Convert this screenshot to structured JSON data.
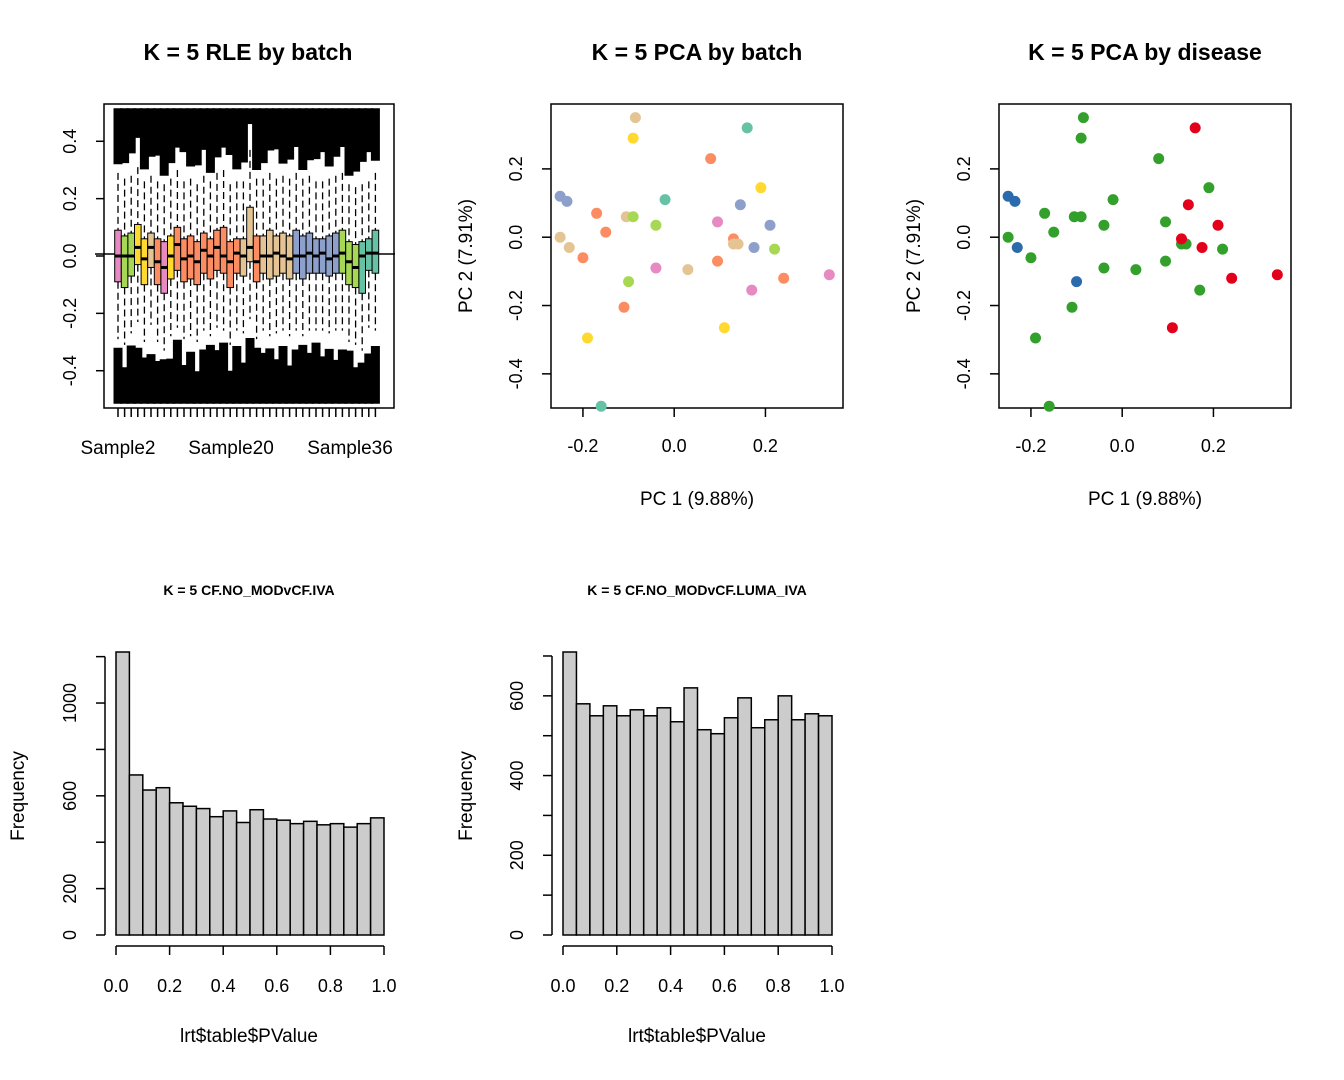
{
  "colors": {
    "background": "#ffffff",
    "hist_fill": "#cccccc",
    "outline": "#000000",
    "batch_palette": [
      "#e78ac3",
      "#a6d854",
      "#ffd92f",
      "#e5c494",
      "#fc8d62",
      "#8da0cb",
      "#66c2a5"
    ],
    "disease": {
      "blue": "#2b6bab",
      "green": "#33a02c",
      "red": "#e3001b"
    }
  },
  "chart_data": [
    {
      "type": "box",
      "title": "K = 5 RLE by batch",
      "xlabel": "",
      "ylabel": "",
      "x_tick_labels": [
        "Sample2",
        "Sample20",
        "Sample36"
      ],
      "y_ticks": [
        -0.4,
        -0.2,
        0.0,
        0.2,
        0.4
      ],
      "y_tick_labels": [
        "-0.4",
        "-0.2",
        "0.0",
        "0.2",
        "0.4"
      ],
      "ylim": [
        -0.53,
        0.53
      ],
      "reference_line": 0,
      "n_samples": 40,
      "boxes": [
        {
          "color": "#e78ac3",
          "median": 0.0,
          "q1": -0.09,
          "q3": 0.09
        },
        {
          "color": "#a6d854",
          "median": 0.0,
          "q1": -0.11,
          "q3": 0.07
        },
        {
          "color": "#a6d854",
          "median": 0.0,
          "q1": -0.07,
          "q3": 0.08
        },
        {
          "color": "#ffd92f",
          "median": 0.03,
          "q1": -0.03,
          "q3": 0.11
        },
        {
          "color": "#ffd92f",
          "median": -0.01,
          "q1": -0.1,
          "q3": 0.06
        },
        {
          "color": "#e5c494",
          "median": 0.03,
          "q1": -0.04,
          "q3": 0.08
        },
        {
          "color": "#fc8d62",
          "median": -0.02,
          "q1": -0.1,
          "q3": 0.06
        },
        {
          "color": "#e78ac3",
          "median": -0.04,
          "q1": -0.13,
          "q3": 0.05
        },
        {
          "color": "#ffd92f",
          "median": 0.0,
          "q1": -0.08,
          "q3": 0.07
        },
        {
          "color": "#fc8d62",
          "median": 0.04,
          "q1": -0.05,
          "q3": 0.1
        },
        {
          "color": "#fc8d62",
          "median": -0.01,
          "q1": -0.09,
          "q3": 0.06
        },
        {
          "color": "#fc8d62",
          "median": 0.0,
          "q1": -0.08,
          "q3": 0.07
        },
        {
          "color": "#fc8d62",
          "median": -0.02,
          "q1": -0.1,
          "q3": 0.05
        },
        {
          "color": "#fc8d62",
          "median": 0.02,
          "q1": -0.06,
          "q3": 0.08
        },
        {
          "color": "#fc8d62",
          "median": 0.0,
          "q1": -0.08,
          "q3": 0.06
        },
        {
          "color": "#fc8d62",
          "median": 0.03,
          "q1": -0.05,
          "q3": 0.09
        },
        {
          "color": "#fc8d62",
          "median": 0.0,
          "q1": -0.06,
          "q3": 0.1
        },
        {
          "color": "#fc8d62",
          "median": -0.02,
          "q1": -0.11,
          "q3": 0.05
        },
        {
          "color": "#fc8d62",
          "median": 0.01,
          "q1": -0.06,
          "q3": 0.06
        },
        {
          "color": "#e5c494",
          "median": 0.0,
          "q1": -0.07,
          "q3": 0.06
        },
        {
          "color": "#e5c494",
          "median": 0.03,
          "q1": -0.02,
          "q3": 0.17
        },
        {
          "color": "#fc8d62",
          "median": -0.02,
          "q1": -0.09,
          "q3": 0.07
        },
        {
          "color": "#e5c494",
          "median": 0.0,
          "q1": -0.06,
          "q3": 0.07
        },
        {
          "color": "#e5c494",
          "median": 0.0,
          "q1": -0.08,
          "q3": 0.09
        },
        {
          "color": "#e5c494",
          "median": 0.01,
          "q1": -0.07,
          "q3": 0.07
        },
        {
          "color": "#e5c494",
          "median": 0.0,
          "q1": -0.06,
          "q3": 0.08
        },
        {
          "color": "#e5c494",
          "median": -0.01,
          "q1": -0.08,
          "q3": 0.07
        },
        {
          "color": "#8da0cb",
          "median": 0.0,
          "q1": -0.06,
          "q3": 0.09
        },
        {
          "color": "#8da0cb",
          "median": 0.0,
          "q1": -0.08,
          "q3": 0.07
        },
        {
          "color": "#8da0cb",
          "median": 0.01,
          "q1": -0.06,
          "q3": 0.08
        },
        {
          "color": "#8da0cb",
          "median": 0.0,
          "q1": -0.06,
          "q3": 0.06
        },
        {
          "color": "#8da0cb",
          "median": 0.01,
          "q1": -0.06,
          "q3": 0.06
        },
        {
          "color": "#8da0cb",
          "median": -0.01,
          "q1": -0.07,
          "q3": 0.07
        },
        {
          "color": "#8da0cb",
          "median": 0.0,
          "q1": -0.06,
          "q3": 0.08
        },
        {
          "color": "#a6d854",
          "median": 0.01,
          "q1": -0.06,
          "q3": 0.09
        },
        {
          "color": "#a6d854",
          "median": -0.02,
          "q1": -0.1,
          "q3": 0.05
        },
        {
          "color": "#a6d854",
          "median": -0.04,
          "q1": -0.11,
          "q3": 0.04
        },
        {
          "color": "#66c2a5",
          "median": 0.0,
          "q1": -0.13,
          "q3": 0.05
        },
        {
          "color": "#66c2a5",
          "median": 0.01,
          "q1": -0.05,
          "q3": 0.06
        },
        {
          "color": "#66c2a5",
          "median": 0.01,
          "q1": -0.06,
          "q3": 0.09
        }
      ]
    },
    {
      "type": "scatter",
      "title": "K = 5 PCA by batch",
      "xlabel": "PC 1 (9.88%)",
      "ylabel": "PC 2 (7.91%)",
      "xlim": [
        -0.27,
        0.37
      ],
      "ylim": [
        -0.5,
        0.39
      ],
      "x_ticks": [
        -0.2,
        0.0,
        0.2
      ],
      "x_tick_labels": [
        "-0.2",
        "0.0",
        "0.2"
      ],
      "y_ticks": [
        -0.4,
        -0.2,
        0.0,
        0.2
      ],
      "y_tick_labels": [
        "-0.4",
        "-0.2",
        "0.0",
        "0.2"
      ],
      "points": [
        {
          "x": -0.25,
          "y": 0.12,
          "color": "#8da0cb"
        },
        {
          "x": -0.235,
          "y": 0.105,
          "color": "#8da0cb"
        },
        {
          "x": -0.25,
          "y": 0.0,
          "color": "#e5c494"
        },
        {
          "x": -0.23,
          "y": -0.03,
          "color": "#e5c494"
        },
        {
          "x": -0.2,
          "y": -0.06,
          "color": "#fc8d62"
        },
        {
          "x": -0.17,
          "y": 0.07,
          "color": "#fc8d62"
        },
        {
          "x": -0.15,
          "y": 0.015,
          "color": "#fc8d62"
        },
        {
          "x": -0.11,
          "y": -0.205,
          "color": "#fc8d62"
        },
        {
          "x": -0.19,
          "y": -0.295,
          "color": "#ffd92f"
        },
        {
          "x": -0.16,
          "y": -0.495,
          "color": "#66c2a5"
        },
        {
          "x": -0.105,
          "y": 0.06,
          "color": "#e5c494"
        },
        {
          "x": -0.085,
          "y": 0.35,
          "color": "#e5c494"
        },
        {
          "x": -0.09,
          "y": 0.29,
          "color": "#ffd92f"
        },
        {
          "x": -0.1,
          "y": -0.13,
          "color": "#a6d854"
        },
        {
          "x": -0.09,
          "y": 0.06,
          "color": "#a6d854"
        },
        {
          "x": -0.04,
          "y": 0.035,
          "color": "#a6d854"
        },
        {
          "x": -0.02,
          "y": 0.11,
          "color": "#66c2a5"
        },
        {
          "x": -0.04,
          "y": -0.09,
          "color": "#e78ac3"
        },
        {
          "x": 0.03,
          "y": -0.095,
          "color": "#e5c494"
        },
        {
          "x": 0.08,
          "y": 0.23,
          "color": "#fc8d62"
        },
        {
          "x": 0.095,
          "y": -0.07,
          "color": "#fc8d62"
        },
        {
          "x": 0.095,
          "y": 0.045,
          "color": "#e78ac3"
        },
        {
          "x": 0.11,
          "y": -0.265,
          "color": "#ffd92f"
        },
        {
          "x": 0.13,
          "y": -0.005,
          "color": "#fc8d62"
        },
        {
          "x": 0.13,
          "y": -0.02,
          "color": "#e5c494"
        },
        {
          "x": 0.14,
          "y": -0.02,
          "color": "#e5c494"
        },
        {
          "x": 0.145,
          "y": 0.095,
          "color": "#8da0cb"
        },
        {
          "x": 0.16,
          "y": 0.32,
          "color": "#66c2a5"
        },
        {
          "x": 0.17,
          "y": -0.155,
          "color": "#e78ac3"
        },
        {
          "x": 0.175,
          "y": -0.03,
          "color": "#8da0cb"
        },
        {
          "x": 0.19,
          "y": 0.145,
          "color": "#ffd92f"
        },
        {
          "x": 0.21,
          "y": 0.035,
          "color": "#8da0cb"
        },
        {
          "x": 0.22,
          "y": -0.035,
          "color": "#a6d854"
        },
        {
          "x": 0.24,
          "y": -0.12,
          "color": "#fc8d62"
        },
        {
          "x": 0.34,
          "y": -0.11,
          "color": "#e78ac3"
        }
      ]
    },
    {
      "type": "scatter",
      "title": "K = 5 PCA by disease",
      "xlabel": "PC 1 (9.88%)",
      "ylabel": "PC 2 (7.91%)",
      "xlim": [
        -0.27,
        0.37
      ],
      "ylim": [
        -0.5,
        0.39
      ],
      "x_ticks": [
        -0.2,
        0.0,
        0.2
      ],
      "x_tick_labels": [
        "-0.2",
        "0.0",
        "0.2"
      ],
      "y_ticks": [
        -0.4,
        -0.2,
        0.0,
        0.2
      ],
      "y_tick_labels": [
        "-0.4",
        "-0.2",
        "0.0",
        "0.2"
      ],
      "points": [
        {
          "x": -0.25,
          "y": 0.12,
          "color": "#2b6bab"
        },
        {
          "x": -0.235,
          "y": 0.105,
          "color": "#2b6bab"
        },
        {
          "x": -0.23,
          "y": -0.03,
          "color": "#2b6bab"
        },
        {
          "x": -0.1,
          "y": -0.13,
          "color": "#2b6bab"
        },
        {
          "x": -0.25,
          "y": 0.0,
          "color": "#33a02c"
        },
        {
          "x": -0.2,
          "y": -0.06,
          "color": "#33a02c"
        },
        {
          "x": -0.17,
          "y": 0.07,
          "color": "#33a02c"
        },
        {
          "x": -0.15,
          "y": 0.015,
          "color": "#33a02c"
        },
        {
          "x": -0.11,
          "y": -0.205,
          "color": "#33a02c"
        },
        {
          "x": -0.19,
          "y": -0.295,
          "color": "#33a02c"
        },
        {
          "x": -0.16,
          "y": -0.495,
          "color": "#33a02c"
        },
        {
          "x": -0.105,
          "y": 0.06,
          "color": "#33a02c"
        },
        {
          "x": -0.085,
          "y": 0.35,
          "color": "#33a02c"
        },
        {
          "x": -0.09,
          "y": 0.29,
          "color": "#33a02c"
        },
        {
          "x": -0.09,
          "y": 0.06,
          "color": "#33a02c"
        },
        {
          "x": -0.04,
          "y": 0.035,
          "color": "#33a02c"
        },
        {
          "x": -0.02,
          "y": 0.11,
          "color": "#33a02c"
        },
        {
          "x": -0.04,
          "y": -0.09,
          "color": "#33a02c"
        },
        {
          "x": 0.03,
          "y": -0.095,
          "color": "#33a02c"
        },
        {
          "x": 0.08,
          "y": 0.23,
          "color": "#33a02c"
        },
        {
          "x": 0.095,
          "y": -0.07,
          "color": "#33a02c"
        },
        {
          "x": 0.095,
          "y": 0.045,
          "color": "#33a02c"
        },
        {
          "x": 0.13,
          "y": -0.02,
          "color": "#33a02c"
        },
        {
          "x": 0.14,
          "y": -0.02,
          "color": "#33a02c"
        },
        {
          "x": 0.17,
          "y": -0.155,
          "color": "#33a02c"
        },
        {
          "x": 0.19,
          "y": 0.145,
          "color": "#33a02c"
        },
        {
          "x": 0.22,
          "y": -0.035,
          "color": "#33a02c"
        },
        {
          "x": 0.11,
          "y": -0.265,
          "color": "#e3001b"
        },
        {
          "x": 0.13,
          "y": -0.005,
          "color": "#e3001b"
        },
        {
          "x": 0.145,
          "y": 0.095,
          "color": "#e3001b"
        },
        {
          "x": 0.16,
          "y": 0.32,
          "color": "#e3001b"
        },
        {
          "x": 0.175,
          "y": -0.03,
          "color": "#e3001b"
        },
        {
          "x": 0.21,
          "y": 0.035,
          "color": "#e3001b"
        },
        {
          "x": 0.24,
          "y": -0.12,
          "color": "#e3001b"
        },
        {
          "x": 0.34,
          "y": -0.11,
          "color": "#e3001b"
        }
      ]
    },
    {
      "type": "histogram",
      "title": "K = 5 CF.NO_MODvCF.IVA",
      "xlabel": "lrt$table$PValue",
      "ylabel": "Frequency",
      "xlim": [
        0,
        1
      ],
      "ylim": [
        0,
        1220
      ],
      "x_ticks": [
        0.0,
        0.2,
        0.4,
        0.6,
        0.8,
        1.0
      ],
      "x_tick_labels": [
        "0.0",
        "0.2",
        "0.4",
        "0.6",
        "0.8",
        "1.0"
      ],
      "y_ticks": [
        0,
        200,
        400,
        600,
        800,
        1000,
        1200
      ],
      "y_tick_labels": [
        "0",
        "200",
        "",
        "600",
        "",
        "1000",
        ""
      ],
      "bin_width": 0.05,
      "values": [
        1220,
        690,
        625,
        635,
        570,
        555,
        545,
        510,
        535,
        485,
        540,
        500,
        495,
        480,
        490,
        475,
        480,
        465,
        480,
        505
      ]
    },
    {
      "type": "histogram",
      "title": "K = 5 CF.NO_MODvCF.LUMA_IVA",
      "xlabel": "lrt$table$PValue",
      "ylabel": "Frequency",
      "xlim": [
        0,
        1
      ],
      "ylim": [
        0,
        710
      ],
      "x_ticks": [
        0.0,
        0.2,
        0.4,
        0.6,
        0.8,
        1.0
      ],
      "x_tick_labels": [
        "0.0",
        "0.2",
        "0.4",
        "0.6",
        "0.8",
        "1.0"
      ],
      "y_ticks": [
        0,
        100,
        200,
        300,
        400,
        500,
        600,
        700
      ],
      "y_tick_labels": [
        "0",
        "",
        "200",
        "",
        "400",
        "",
        "600",
        ""
      ],
      "bin_width": 0.05,
      "values": [
        710,
        580,
        550,
        575,
        550,
        565,
        550,
        570,
        535,
        620,
        515,
        505,
        545,
        595,
        520,
        540,
        600,
        540,
        555,
        550
      ]
    }
  ]
}
